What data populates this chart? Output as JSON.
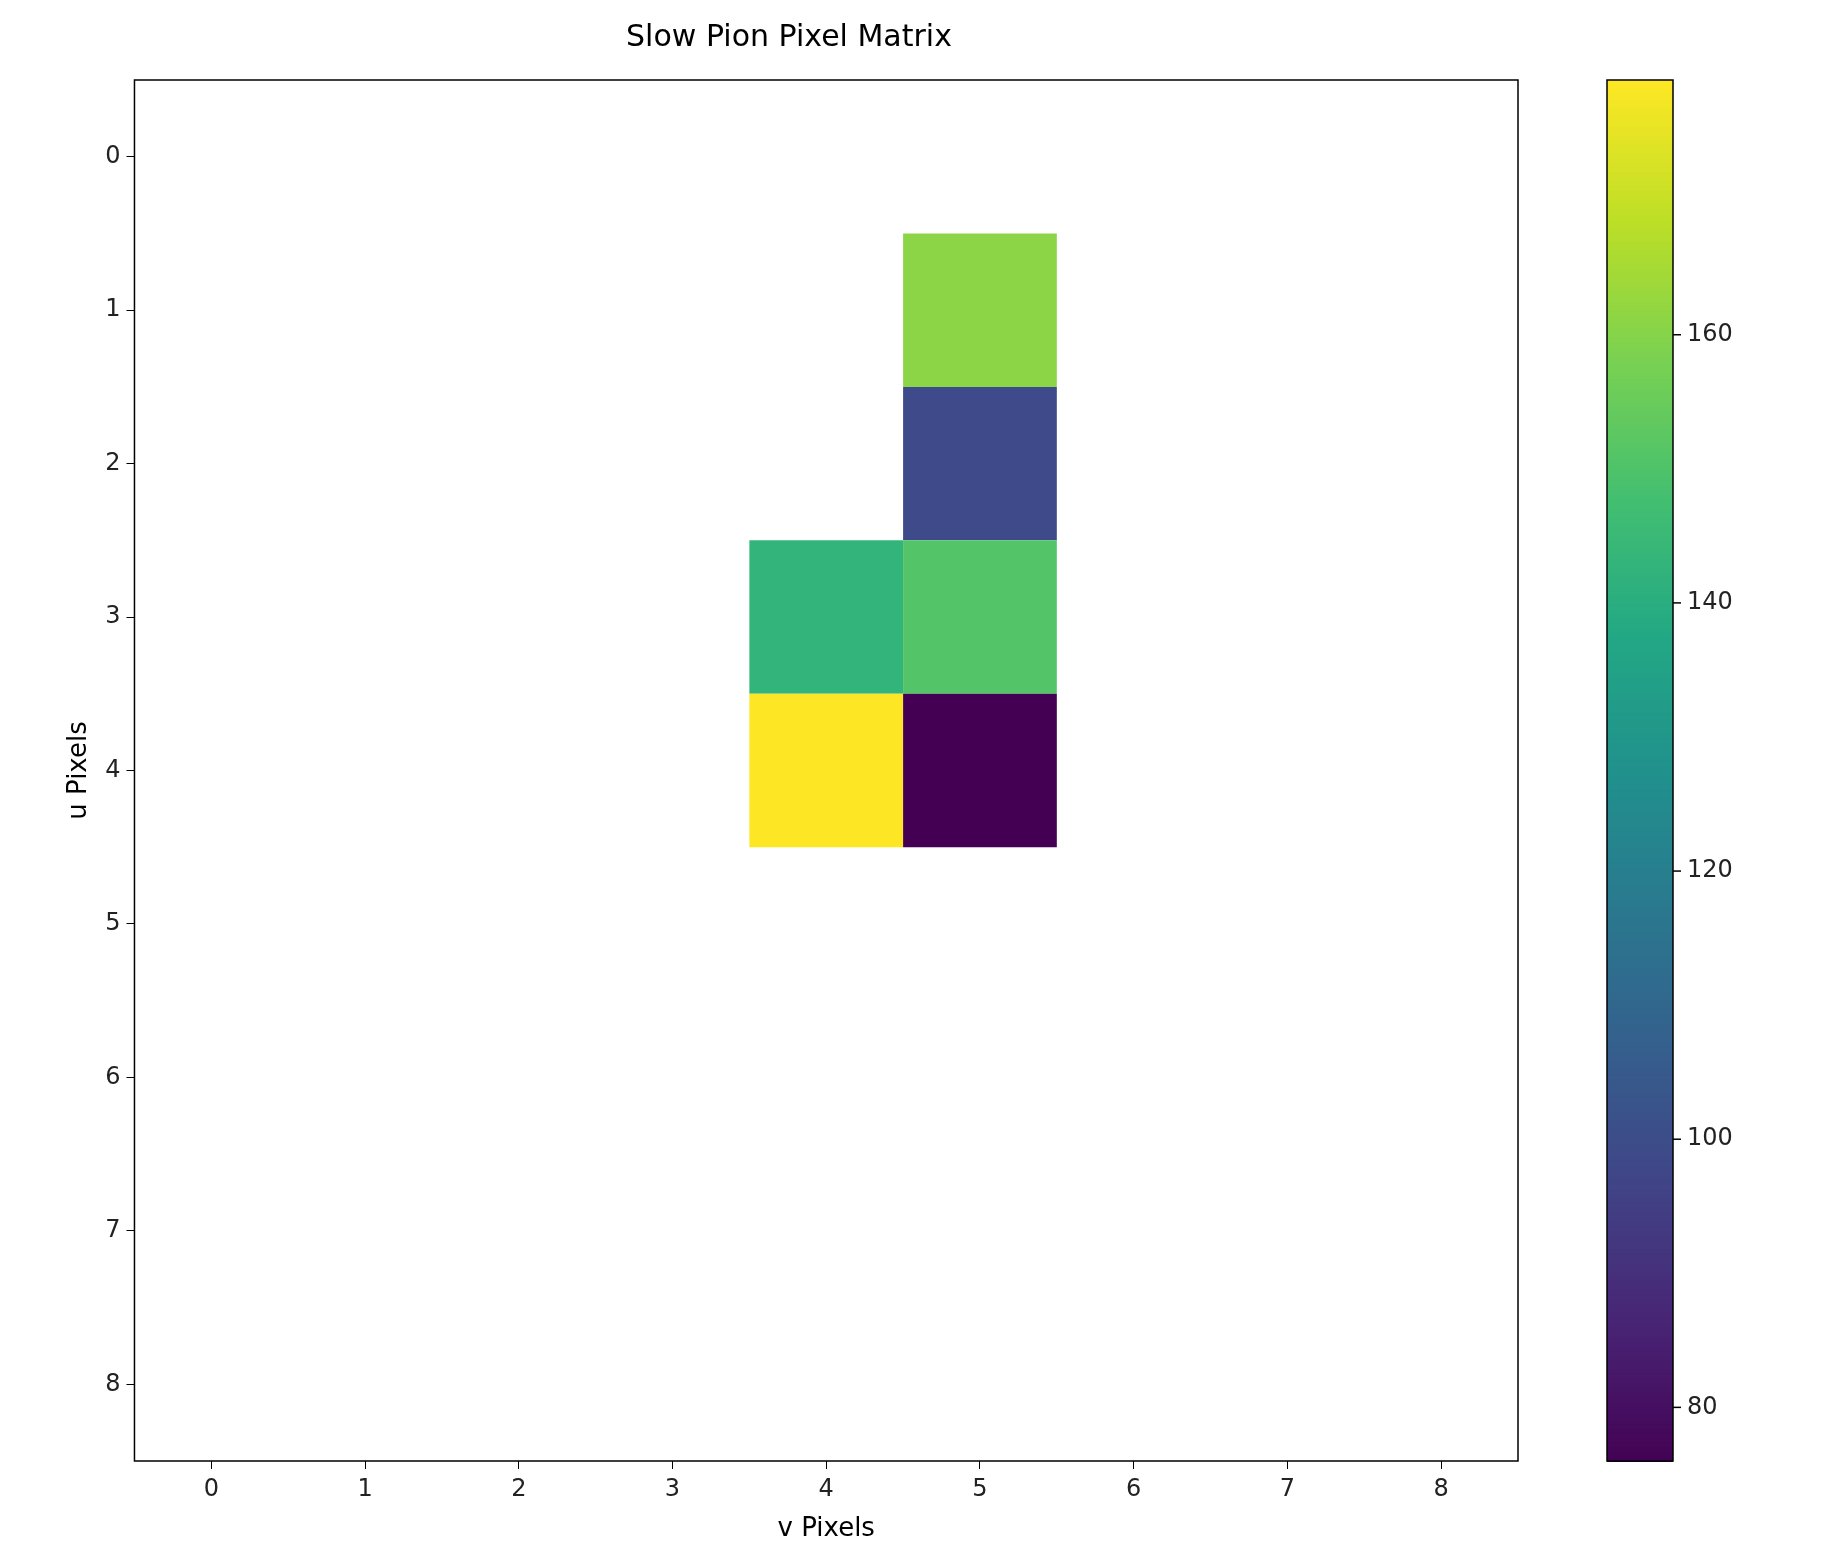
{
  "chart_data": {
    "type": "heatmap",
    "title": "Slow Pion Pixel Matrix",
    "xlabel": "v Pixels",
    "ylabel": "u Pixels",
    "categories": [
      "0",
      "1",
      "2",
      "3",
      "4",
      "5",
      "6",
      "7",
      "8"
    ],
    "y_categories": [
      "0",
      "1",
      "2",
      "3",
      "4",
      "5",
      "6",
      "7",
      "8"
    ],
    "cells": [
      [
        null,
        null,
        null,
        null,
        null,
        null,
        null,
        null,
        null
      ],
      [
        null,
        null,
        null,
        null,
        null,
        161,
        null,
        null,
        null
      ],
      [
        null,
        null,
        null,
        null,
        null,
        99,
        null,
        null,
        null
      ],
      [
        null,
        null,
        null,
        null,
        143,
        151,
        null,
        null,
        null
      ],
      [
        null,
        null,
        null,
        null,
        179,
        76,
        null,
        null,
        null
      ],
      [
        null,
        null,
        null,
        null,
        null,
        null,
        null,
        null,
        null
      ],
      [
        null,
        null,
        null,
        null,
        null,
        null,
        null,
        null,
        null
      ],
      [
        null,
        null,
        null,
        null,
        null,
        null,
        null,
        null,
        null
      ],
      [
        null,
        null,
        null,
        null,
        null,
        null,
        null,
        null,
        null
      ]
    ],
    "clim": [
      76,
      179
    ],
    "cticks": [
      80,
      100,
      120,
      140,
      160
    ]
  }
}
